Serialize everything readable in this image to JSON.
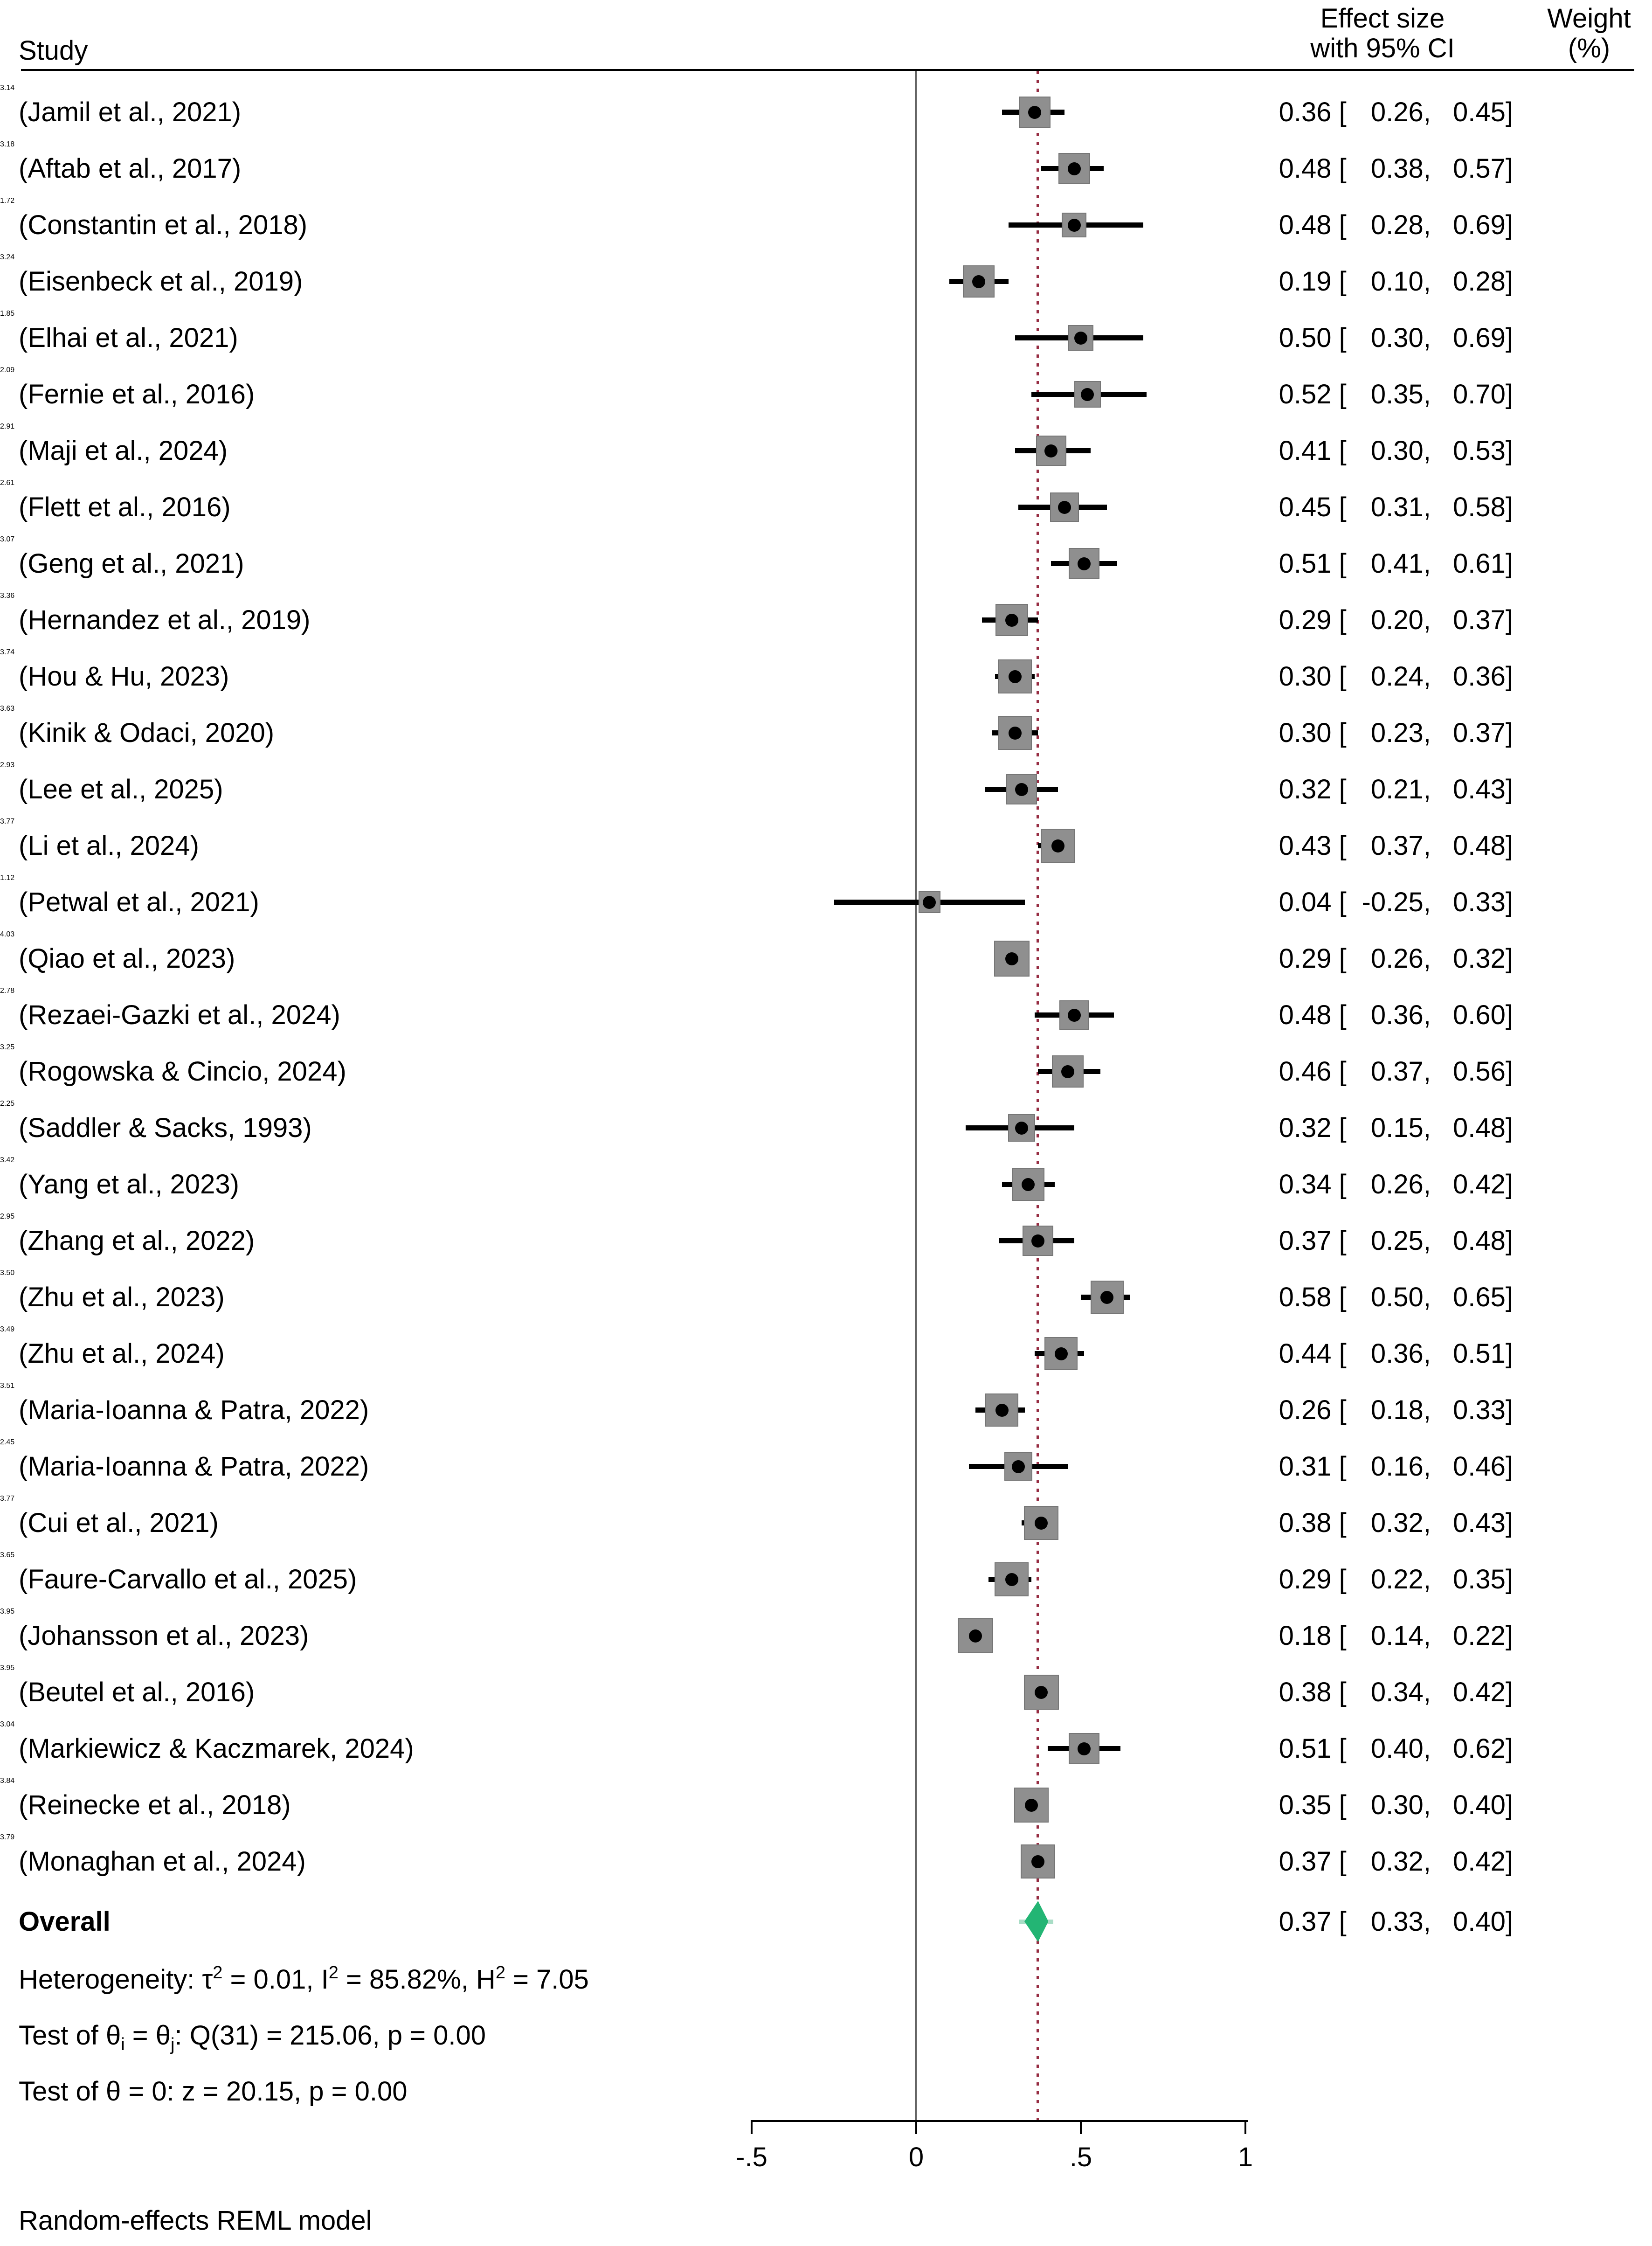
{
  "headers": {
    "study": "Study",
    "effect_line1": "Effect size",
    "effect_line2": "with 95% CI",
    "weight_line1": "Weight",
    "weight_line2": "(%)"
  },
  "chart_data": {
    "type": "forest",
    "x_axis": {
      "range": [
        -0.5,
        1
      ],
      "ticks": [
        {
          "label": "-.5",
          "value": -0.5
        },
        {
          "label": "0",
          "value": 0
        },
        {
          "label": ".5",
          "value": 0.5
        },
        {
          "label": "1",
          "value": 1
        }
      ],
      "zero_line_value": 0,
      "reference_line_value": 0.37
    },
    "ci_format": {
      "open": " [",
      "sep": ",",
      "close": "]"
    },
    "studies": [
      {
        "label": "(Jamil et al., 2021)",
        "est": "0.36",
        "lo": "0.26",
        "hi": "0.45",
        "weight": "3.14"
      },
      {
        "label": "(Aftab et al., 2017)",
        "est": "0.48",
        "lo": "0.38",
        "hi": "0.57",
        "weight": "3.18"
      },
      {
        "label": "(Constantin et al., 2018)",
        "est": "0.48",
        "lo": "0.28",
        "hi": "0.69",
        "weight": "1.72"
      },
      {
        "label": "(Eisenbeck et al., 2019)",
        "est": "0.19",
        "lo": "0.10",
        "hi": "0.28",
        "weight": "3.24"
      },
      {
        "label": "(Elhai et al., 2021)",
        "est": "0.50",
        "lo": "0.30",
        "hi": "0.69",
        "weight": "1.85"
      },
      {
        "label": "(Fernie et al., 2016)",
        "est": "0.52",
        "lo": "0.35",
        "hi": "0.70",
        "weight": "2.09"
      },
      {
        "label": "(Maji et al., 2024)",
        "est": "0.41",
        "lo": "0.30",
        "hi": "0.53",
        "weight": "2.91"
      },
      {
        "label": "(Flett et al., 2016)",
        "est": "0.45",
        "lo": "0.31",
        "hi": "0.58",
        "weight": "2.61"
      },
      {
        "label": "(Geng et al., 2021)",
        "est": "0.51",
        "lo": "0.41",
        "hi": "0.61",
        "weight": "3.07"
      },
      {
        "label": "(Hernandez et al., 2019)",
        "est": "0.29",
        "lo": "0.20",
        "hi": "0.37",
        "weight": "3.36"
      },
      {
        "label": "(Hou & Hu, 2023)",
        "est": "0.30",
        "lo": "0.24",
        "hi": "0.36",
        "weight": "3.74"
      },
      {
        "label": "(Kinik & Odaci, 2020)",
        "est": "0.30",
        "lo": "0.23",
        "hi": "0.37",
        "weight": "3.63"
      },
      {
        "label": "(Lee et al., 2025)",
        "est": "0.32",
        "lo": "0.21",
        "hi": "0.43",
        "weight": "2.93"
      },
      {
        "label": "(Li et al., 2024)",
        "est": "0.43",
        "lo": "0.37",
        "hi": "0.48",
        "weight": "3.77"
      },
      {
        "label": "(Petwal et al., 2021)",
        "est": "0.04",
        "lo": "-0.25",
        "hi": "0.33",
        "weight": "1.12"
      },
      {
        "label": "(Qiao et al., 2023)",
        "est": "0.29",
        "lo": "0.26",
        "hi": "0.32",
        "weight": "4.03"
      },
      {
        "label": "(Rezaei-Gazki et al., 2024)",
        "est": "0.48",
        "lo": "0.36",
        "hi": "0.60",
        "weight": "2.78"
      },
      {
        "label": "(Rogowska & Cincio, 2024)",
        "est": "0.46",
        "lo": "0.37",
        "hi": "0.56",
        "weight": "3.25"
      },
      {
        "label": "(Saddler & Sacks, 1993)",
        "est": "0.32",
        "lo": "0.15",
        "hi": "0.48",
        "weight": "2.25"
      },
      {
        "label": "(Yang et al., 2023)",
        "est": "0.34",
        "lo": "0.26",
        "hi": "0.42",
        "weight": "3.42"
      },
      {
        "label": "(Zhang et al., 2022)",
        "est": "0.37",
        "lo": "0.25",
        "hi": "0.48",
        "weight": "2.95"
      },
      {
        "label": "(Zhu et al., 2023)",
        "est": "0.58",
        "lo": "0.50",
        "hi": "0.65",
        "weight": "3.50"
      },
      {
        "label": "(Zhu et al., 2024)",
        "est": "0.44",
        "lo": "0.36",
        "hi": "0.51",
        "weight": "3.49"
      },
      {
        "label": "(Maria-Ioanna & Patra, 2022)",
        "est": "0.26",
        "lo": "0.18",
        "hi": "0.33",
        "weight": "3.51"
      },
      {
        "label": "(Maria-Ioanna & Patra, 2022)",
        "est": "0.31",
        "lo": "0.16",
        "hi": "0.46",
        "weight": "2.45"
      },
      {
        "label": "(Cui et al., 2021)",
        "est": "0.38",
        "lo": "0.32",
        "hi": "0.43",
        "weight": "3.77"
      },
      {
        "label": "(Faure-Carvallo et al., 2025)",
        "est": "0.29",
        "lo": "0.22",
        "hi": "0.35",
        "weight": "3.65"
      },
      {
        "label": "(Johansson et al., 2023)",
        "est": "0.18",
        "lo": "0.14",
        "hi": "0.22",
        "weight": "3.95"
      },
      {
        "label": "(Beutel et al., 2016)",
        "est": "0.38",
        "lo": "0.34",
        "hi": "0.42",
        "weight": "3.95"
      },
      {
        "label": "(Markiewicz & Kaczmarek, 2024)",
        "est": "0.51",
        "lo": "0.40",
        "hi": "0.62",
        "weight": "3.04"
      },
      {
        "label": "(Reinecke et al., 2018)",
        "est": "0.35",
        "lo": "0.30",
        "hi": "0.40",
        "weight": "3.84"
      },
      {
        "label": "(Monaghan et al., 2024)",
        "est": "0.37",
        "lo": "0.32",
        "hi": "0.42",
        "weight": "3.79"
      }
    ],
    "overall": {
      "label": "Overall",
      "est": "0.37",
      "lo": "0.33",
      "hi": "0.40"
    }
  },
  "stats": {
    "heterogeneity_segments": [
      {
        "t": "Heterogeneity: τ"
      },
      {
        "t": "2",
        "s": "sup"
      },
      {
        "t": " = 0.01, I"
      },
      {
        "t": "2",
        "s": "sup"
      },
      {
        "t": " = 85.82%, H"
      },
      {
        "t": "2",
        "s": "sup"
      },
      {
        "t": " = 7.05"
      }
    ],
    "test_theta_segments": [
      {
        "t": "Test of θ"
      },
      {
        "t": "i",
        "s": "sub"
      },
      {
        "t": " = θ"
      },
      {
        "t": "j",
        "s": "sub"
      },
      {
        "t": ": Q(31) = 215.06, p = 0.00"
      }
    ],
    "test_zero": "Test of θ = 0: z = 20.15, p = 0.00"
  },
  "footer": {
    "model_note": "Random-effects REML model"
  },
  "colors": {
    "box": "#8f8f8f",
    "box_border": "#767676",
    "marker_dot": "#000000",
    "ci_line": "#000000",
    "diamond": "#23b574",
    "overall_ci": "#a9ddc6",
    "ref_line": "#962c42",
    "zero_line": "#5c5c5c"
  }
}
